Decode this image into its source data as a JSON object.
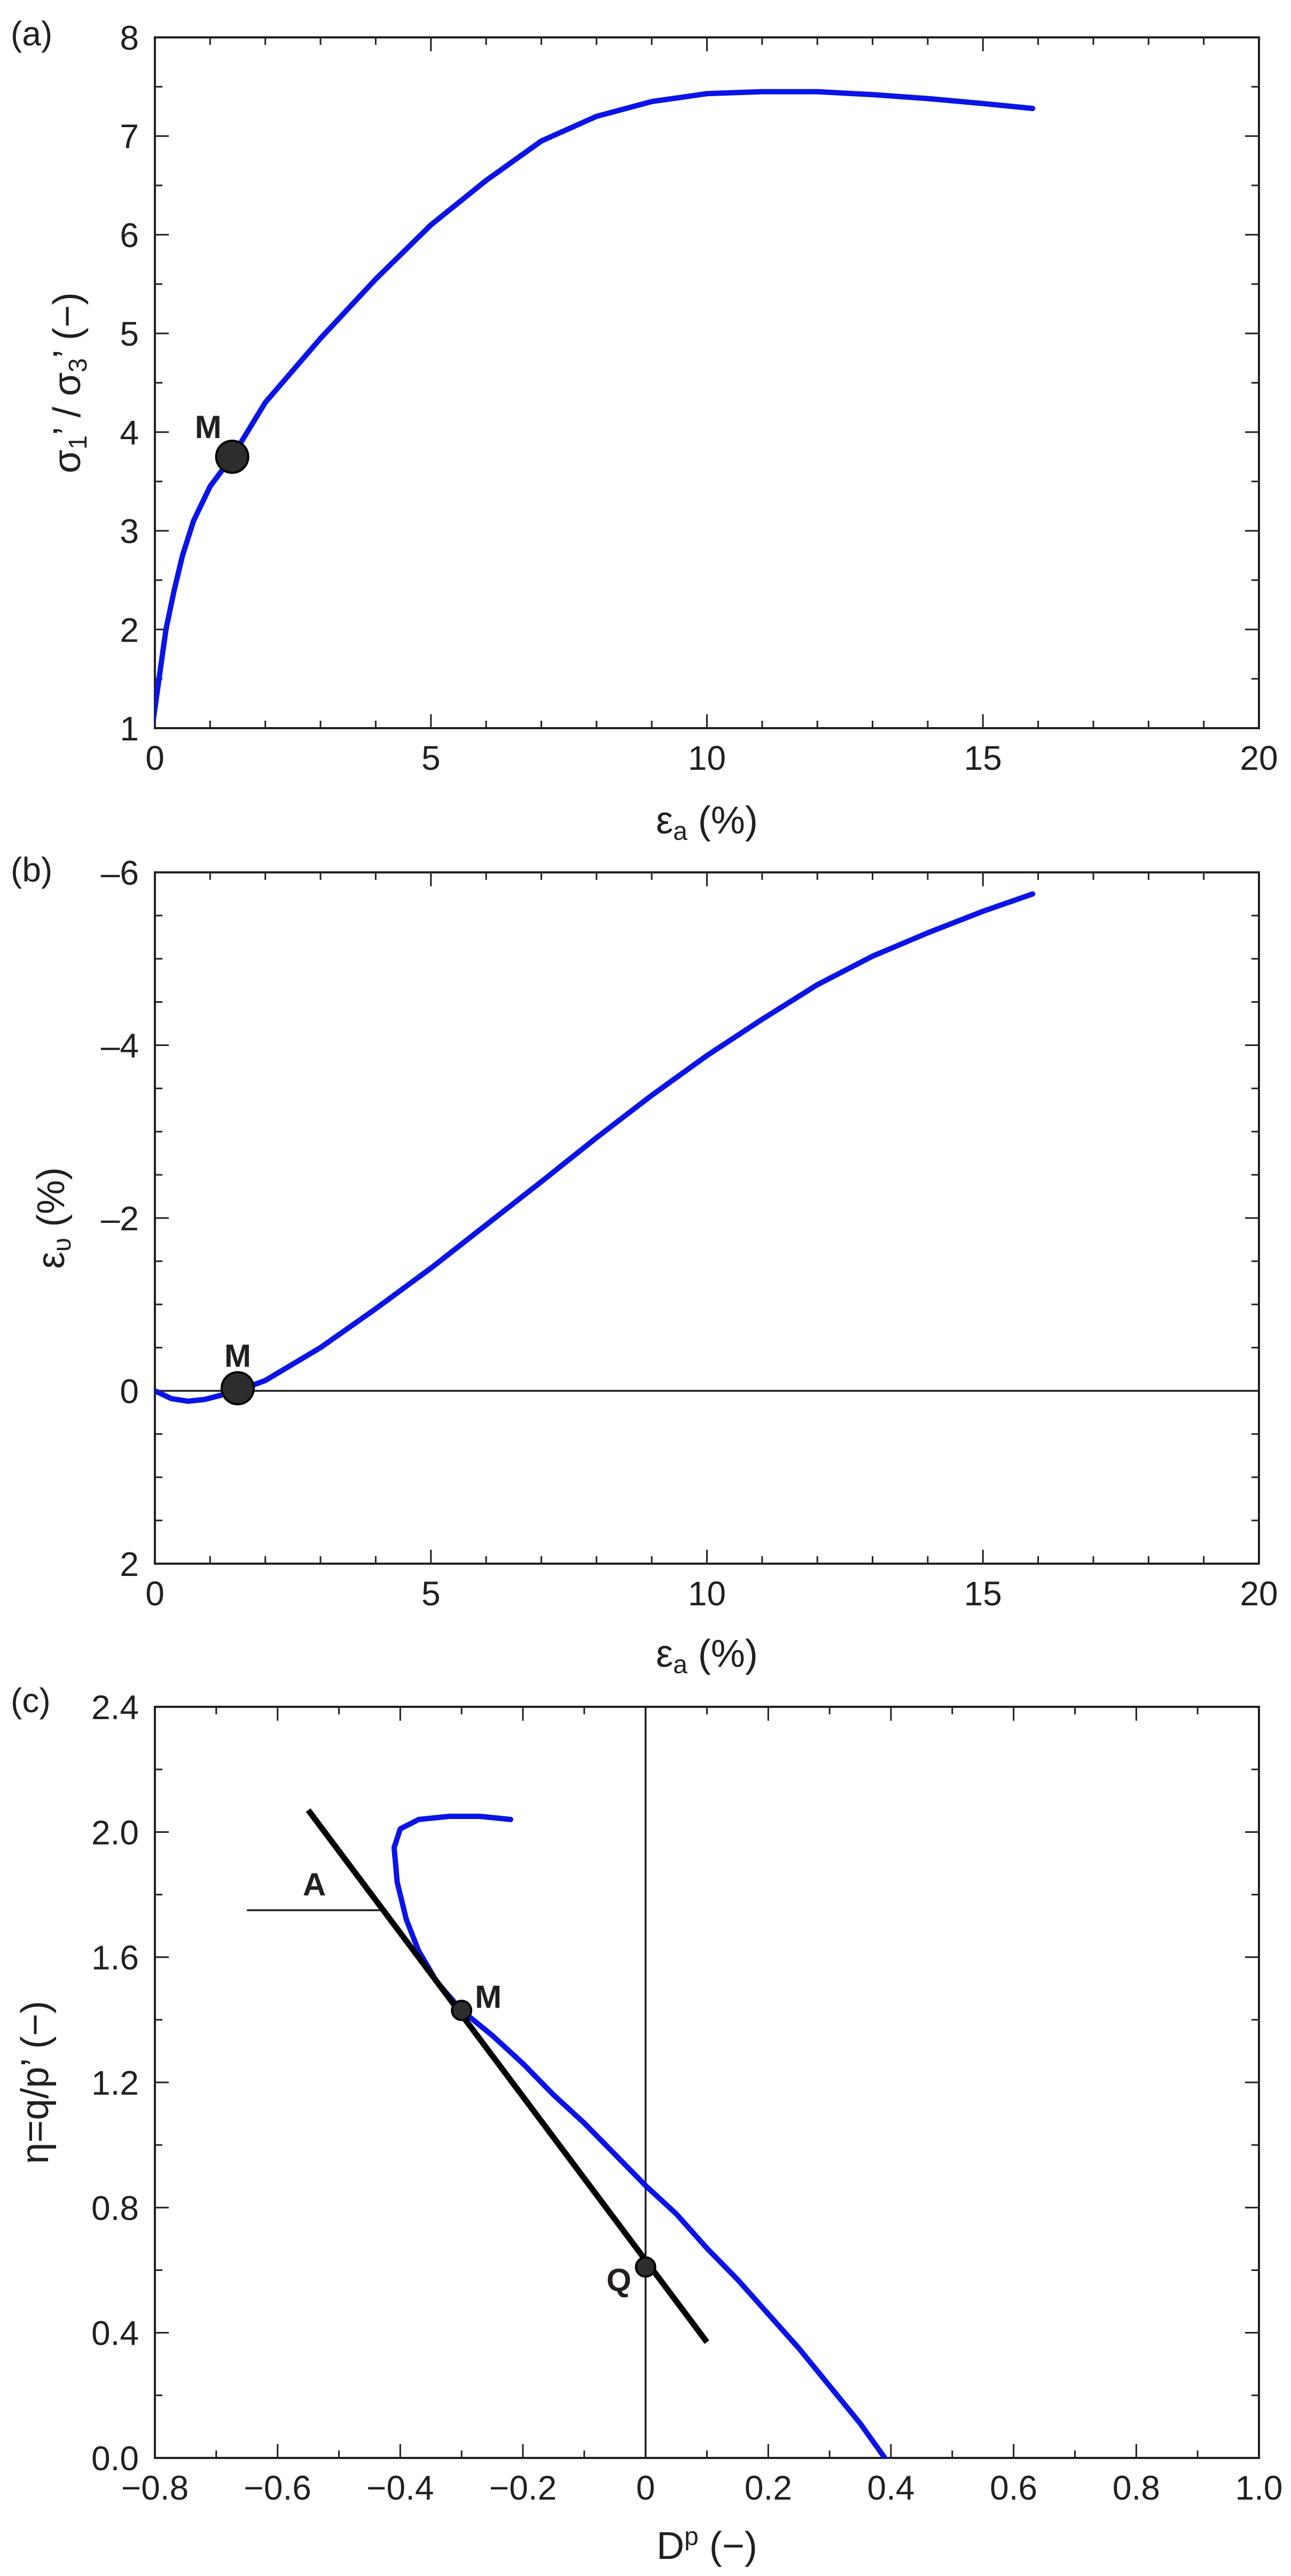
{
  "chart_data": [
    {
      "panel": "(a)",
      "type": "line",
      "ylabel_parts": [
        "σ",
        "1",
        "’ / σ",
        "3",
        "’ (−)"
      ],
      "xlabel_parts": [
        "ε",
        "a",
        " (%)"
      ],
      "xlim": [
        0,
        20
      ],
      "ylim": [
        1,
        8
      ],
      "xticks": [
        "0",
        "5",
        "10",
        "15",
        "20"
      ],
      "yticks": [
        "1",
        "2",
        "3",
        "4",
        "5",
        "6",
        "7",
        "8"
      ],
      "grid": false,
      "series": [
        {
          "color": "#0a14e6",
          "x": [
            -0.05,
            0.0,
            0.1,
            0.2,
            0.35,
            0.5,
            0.7,
            1.0,
            1.4,
            2.0,
            3.0,
            4.0,
            5.0,
            6.0,
            7.0,
            8.0,
            9.0,
            10.0,
            11.0,
            12.0,
            13.0,
            14.0,
            15.0,
            15.9
          ],
          "y": [
            1.0,
            1.2,
            1.6,
            2.0,
            2.4,
            2.75,
            3.1,
            3.45,
            3.75,
            4.3,
            4.95,
            5.55,
            6.1,
            6.55,
            6.95,
            7.2,
            7.35,
            7.43,
            7.45,
            7.45,
            7.42,
            7.38,
            7.33,
            7.28
          ]
        }
      ],
      "points": [
        {
          "label": "M",
          "x": 1.4,
          "y": 3.75
        }
      ]
    },
    {
      "panel": "(b)",
      "type": "line",
      "ylabel_parts": [
        "ε",
        "υ",
        " (%)"
      ],
      "xlabel_parts": [
        "ε",
        "a",
        " (%)"
      ],
      "xlim": [
        0,
        20
      ],
      "ylim": [
        2,
        -6
      ],
      "y_axis_inverted": true,
      "xticks": [
        "0",
        "5",
        "10",
        "15",
        "20"
      ],
      "yticks": [
        "2",
        "0",
        "–2",
        "–4",
        "–6"
      ],
      "reference_lines": [
        {
          "y": 0
        }
      ],
      "grid": false,
      "series": [
        {
          "color": "#0a14e6",
          "x": [
            0.0,
            0.3,
            0.6,
            0.9,
            1.2,
            1.5,
            2.0,
            3.0,
            4.0,
            5.0,
            6.0,
            7.0,
            8.0,
            9.0,
            10.0,
            11.0,
            12.0,
            13.0,
            14.0,
            15.0,
            15.9
          ],
          "y": [
            0.0,
            0.09,
            0.12,
            0.1,
            0.05,
            0.0,
            -0.12,
            -0.5,
            -0.95,
            -1.42,
            -1.92,
            -2.42,
            -2.93,
            -3.42,
            -3.88,
            -4.3,
            -4.7,
            -5.03,
            -5.3,
            -5.55,
            -5.75
          ]
        }
      ],
      "points": [
        {
          "label": "M",
          "x": 1.5,
          "y": -0.03
        }
      ]
    },
    {
      "panel": "(c)",
      "type": "line",
      "ylabel_parts": [
        "η=q/p’ (−)"
      ],
      "xlabel_parts": [
        "D",
        "p",
        " (−)"
      ],
      "xlim": [
        -0.8,
        1.0
      ],
      "ylim": [
        0.0,
        2.4
      ],
      "xticks": [
        "−0.8",
        "−0.6",
        "−0.4",
        "−0.2",
        "0",
        "0.2",
        "0.4",
        "0.6",
        "0.8",
        "1.0"
      ],
      "yticks": [
        "0.0",
        "0.4",
        "0.8",
        "1.2",
        "1.6",
        "2.0",
        "2.4"
      ],
      "reference_lines": [
        {
          "x": 0
        }
      ],
      "grid": false,
      "series": [
        {
          "color": "#0a14e6",
          "x": [
            0.39,
            0.35,
            0.3,
            0.25,
            0.2,
            0.15,
            0.1,
            0.05,
            0.0,
            -0.05,
            -0.1,
            -0.15,
            -0.2,
            -0.25,
            -0.3,
            -0.34,
            -0.37,
            -0.39,
            -0.405,
            -0.41,
            -0.4,
            -0.37,
            -0.32,
            -0.27,
            -0.22
          ],
          "y": [
            0.0,
            0.11,
            0.23,
            0.35,
            0.46,
            0.57,
            0.67,
            0.78,
            0.87,
            0.97,
            1.07,
            1.16,
            1.26,
            1.35,
            1.43,
            1.52,
            1.62,
            1.72,
            1.84,
            1.95,
            2.01,
            2.04,
            2.05,
            2.05,
            2.04
          ]
        },
        {
          "color": "#000000",
          "x": [
            -0.55,
            0.1
          ],
          "y": [
            2.07,
            0.37
          ]
        }
      ],
      "points": [
        {
          "label": "M",
          "x": -0.3,
          "y": 1.43
        },
        {
          "label": "Q",
          "x": 0.0,
          "y": 0.61
        }
      ],
      "annotations": [
        {
          "label": "A",
          "line_x": [
            -0.65,
            -0.43
          ],
          "line_y": 1.75
        }
      ]
    }
  ]
}
